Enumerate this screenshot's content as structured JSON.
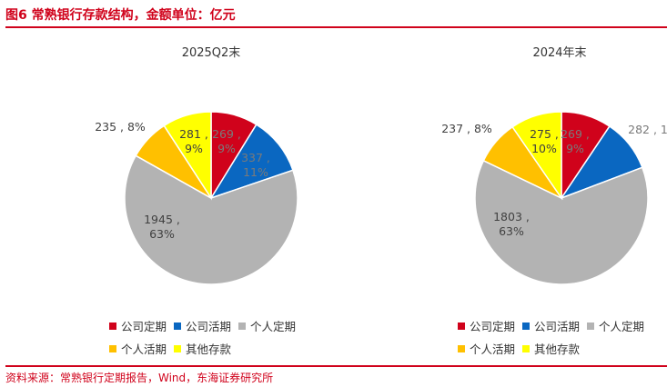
{
  "header": {
    "title": "图6  常熟银行存款结构，金额单位：亿元"
  },
  "footer": {
    "source": "资料来源：常熟银行定期报告，Wind，东海证券研究所"
  },
  "colors": {
    "accent": "#d0021b",
    "公司定期": "#d0021b",
    "公司活期": "#0a67c1",
    "个人定期": "#b3b3b3",
    "个人活期": "#ffc000",
    "其他存款": "#ffff00"
  },
  "chart_data": [
    {
      "type": "pie",
      "title": "2025Q2末",
      "series": [
        {
          "name": "公司定期",
          "value": 269,
          "percent": "9%",
          "label": "269 , 9%"
        },
        {
          "name": "公司活期",
          "value": 337,
          "percent": "11%",
          "label": "337 , 11%"
        },
        {
          "name": "个人定期",
          "value": 1945,
          "percent": "63%",
          "label": "1945 , 63%"
        },
        {
          "name": "个人活期",
          "value": 235,
          "percent": "8%",
          "label": "235 , 8%"
        },
        {
          "name": "其他存款",
          "value": 281,
          "percent": "9%",
          "label": "281 , 9%"
        }
      ],
      "legend": [
        "公司定期",
        "公司活期",
        "个人定期",
        "个人活期",
        "其他存款"
      ],
      "legend_position": "bottom"
    },
    {
      "type": "pie",
      "title": "2024年末",
      "series": [
        {
          "name": "公司定期",
          "value": 269,
          "percent": "9%",
          "label": "269 , 9%"
        },
        {
          "name": "公司活期",
          "value": 282,
          "percent": "",
          "label": "282 , 1"
        },
        {
          "name": "个人定期",
          "value": 1803,
          "percent": "63%",
          "label": "1803 , 63%"
        },
        {
          "name": "个人活期",
          "value": 237,
          "percent": "8%",
          "label": "237 , 8%"
        },
        {
          "name": "其他存款",
          "value": 275,
          "percent": "10%",
          "label": "275 , 10%"
        }
      ],
      "legend": [
        "公司定期",
        "公司活期",
        "个人定期",
        "个人活期",
        "其他存款"
      ],
      "legend_position": "bottom"
    }
  ]
}
